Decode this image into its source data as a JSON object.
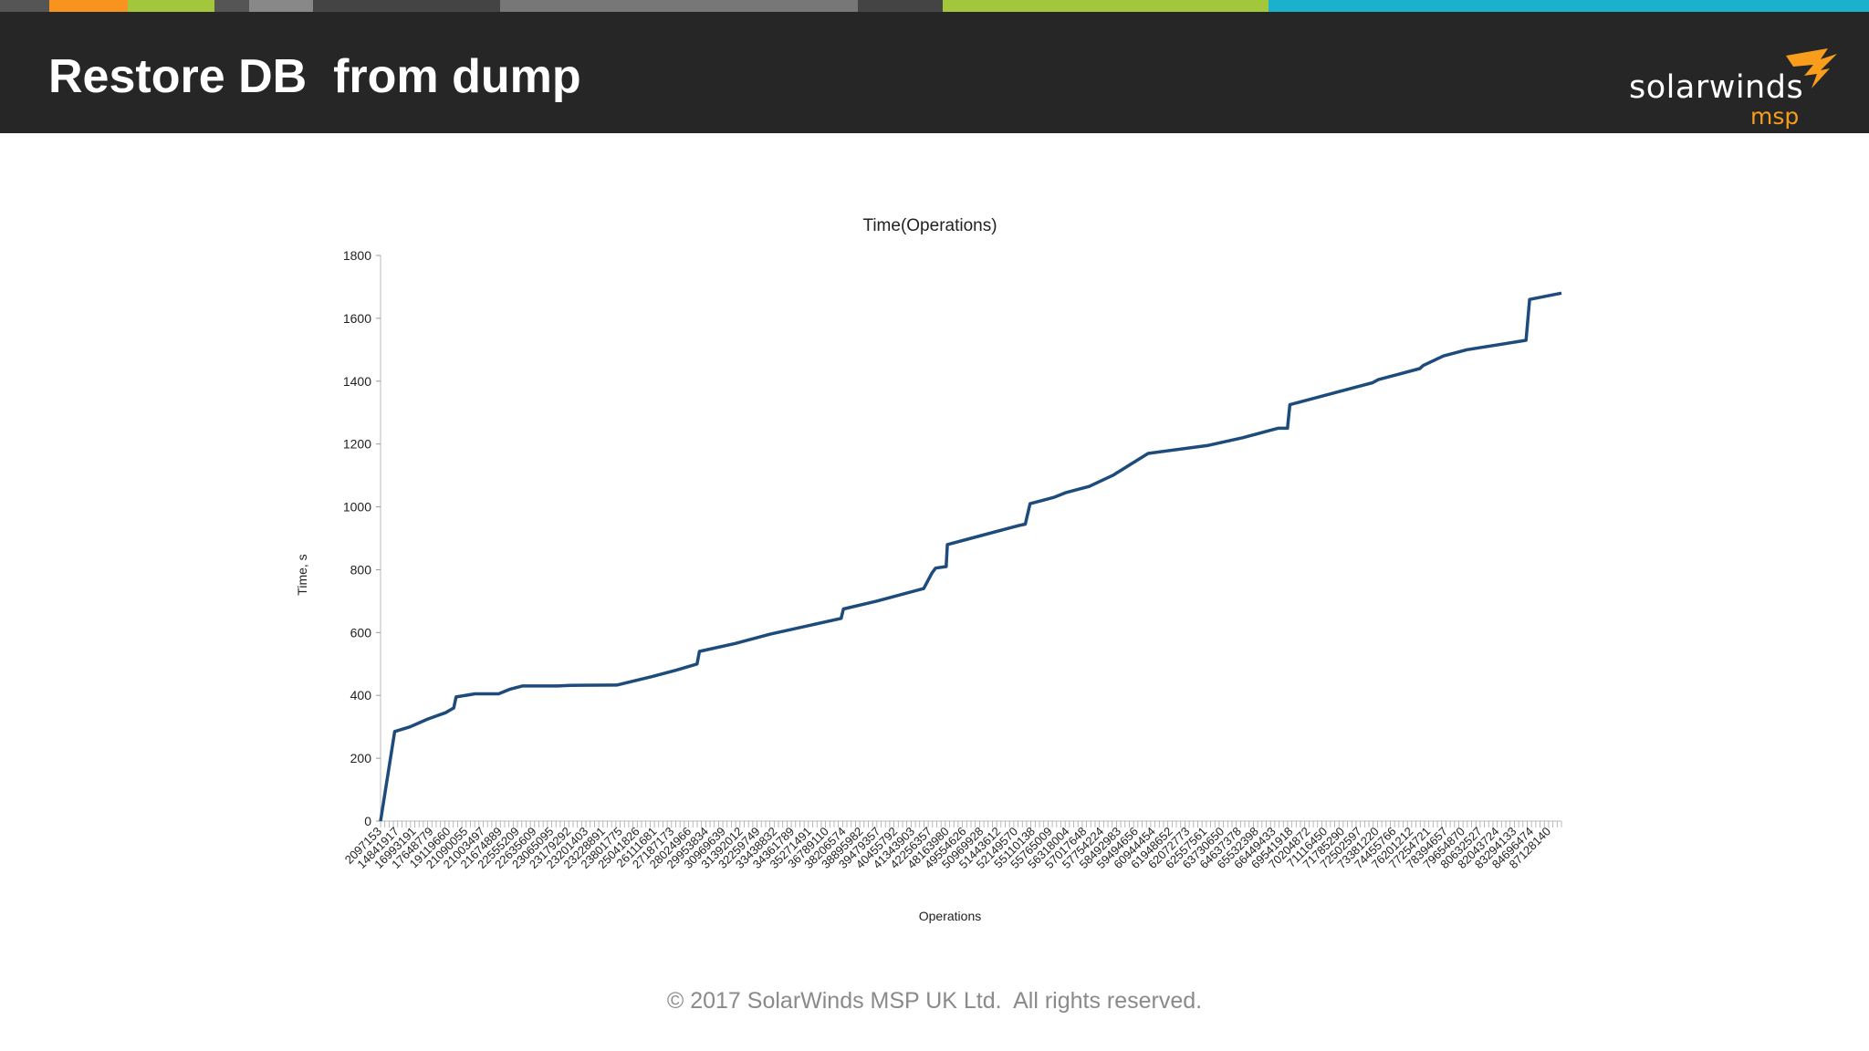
{
  "slide": {
    "title": "Restore DB  from dump",
    "footer": "© 2017 SolarWinds MSP UK Ltd.  All rights reserved."
  },
  "logo": {
    "word": "solarwinds",
    "sub": "msp",
    "icon": "solarwinds-bird-icon"
  },
  "colors": {
    "header_bg": "#262626",
    "line": "#1c4b7c",
    "accent_orange": "#f99d1c",
    "accent_green": "#a2c73b",
    "accent_teal": "#1ab1cc"
  },
  "top_stripe_colors": [
    "#555555",
    "#f7931e",
    "#a2c73b",
    "#555555",
    "#888888",
    "#444444",
    "#777777",
    "#444444",
    "#a2c73b",
    "#1ab1cc"
  ],
  "chart_data": {
    "type": "line",
    "title": "Time(Operations)",
    "xlabel": "Operations",
    "ylabel": "Time, s",
    "ylim": [
      0,
      1800
    ],
    "yticks": [
      0,
      200,
      400,
      600,
      800,
      1000,
      1200,
      1400,
      1600,
      1800
    ],
    "grid": false,
    "x_tick_labels": [
      "2097153",
      "14841917",
      "16993191",
      "17648779",
      "19119660",
      "21090055",
      "21003497",
      "21674889",
      "22555209",
      "22635609",
      "23065095",
      "23179292",
      "23201403",
      "23228891",
      "23801775",
      "25041826",
      "26111681",
      "27187173",
      "28024966",
      "29953834",
      "30969639",
      "31392012",
      "32259749",
      "33438832",
      "34361789",
      "35271491",
      "36789110",
      "38206574",
      "38895982",
      "39479357",
      "40455792",
      "41343903",
      "42256357",
      "48163980",
      "49554626",
      "50969928",
      "51443612",
      "52149570",
      "55110138",
      "55765009",
      "56318004",
      "57017648",
      "57754224",
      "58492983",
      "59494656",
      "60944454",
      "61948652",
      "62072773",
      "62557561",
      "63730650",
      "64637378",
      "65532398",
      "66449433",
      "69541918",
      "70204872",
      "71116450",
      "71785290",
      "72502597",
      "73381220",
      "74455766",
      "76201212",
      "77254721",
      "78394657",
      "79654870",
      "80632527",
      "82043724",
      "83294133",
      "84696474",
      "87128140"
    ],
    "x": [
      0.0,
      0.012,
      0.025,
      0.04,
      0.055,
      0.062,
      0.064,
      0.08,
      0.1,
      0.11,
      0.12,
      0.15,
      0.16,
      0.2,
      0.23,
      0.25,
      0.268,
      0.27,
      0.3,
      0.33,
      0.39,
      0.392,
      0.42,
      0.46,
      0.467,
      0.47,
      0.479,
      0.48,
      0.5,
      0.54,
      0.546,
      0.55,
      0.57,
      0.58,
      0.6,
      0.62,
      0.65,
      0.7,
      0.73,
      0.76,
      0.768,
      0.77,
      0.81,
      0.83,
      0.84,
      0.845,
      0.86,
      0.88,
      0.883,
      0.9,
      0.92,
      0.97,
      0.973,
      1.0
    ],
    "values": [
      0,
      285,
      300,
      325,
      345,
      360,
      395,
      405,
      405,
      420,
      430,
      430,
      432,
      433,
      460,
      480,
      500,
      540,
      565,
      595,
      645,
      675,
      700,
      740,
      790,
      805,
      810,
      880,
      900,
      940,
      945,
      1010,
      1030,
      1045,
      1065,
      1100,
      1170,
      1195,
      1220,
      1250,
      1250,
      1325,
      1365,
      1385,
      1395,
      1405,
      1420,
      1440,
      1450,
      1480,
      1500,
      1530,
      1660,
      1680
    ]
  }
}
